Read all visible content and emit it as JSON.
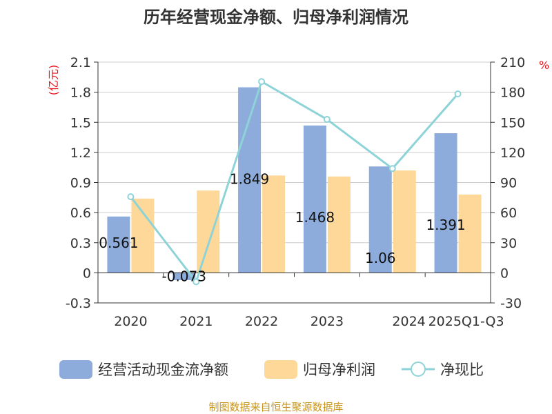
{
  "chart_data": {
    "type": "bar",
    "title": "历年经营现金净额、归母净利润情况",
    "categories": [
      "2020",
      "2021",
      "2022",
      "2023",
      "2024",
      "2025Q1-Q3"
    ],
    "left_axis": {
      "unit_label": "(亿元)",
      "ticks": [
        "2.1",
        "1.8",
        "1.5",
        "1.2",
        "0.9",
        "0.6",
        "0.3",
        "0",
        "-0.3"
      ],
      "ylim": [
        -0.3,
        2.1
      ]
    },
    "right_axis": {
      "unit_label": "%",
      "ticks": [
        "210",
        "180",
        "150",
        "120",
        "90",
        "60",
        "30",
        "0",
        "-30"
      ],
      "ylim": [
        -30,
        210
      ]
    },
    "series": [
      {
        "name": "经营活动现金流净额",
        "kind": "bar",
        "axis": "left",
        "color": "#8dacdb",
        "values": [
          0.561,
          -0.073,
          1.849,
          1.468,
          1.06,
          1.391
        ],
        "labels": [
          "0.561",
          "-0.073",
          "1.849",
          "1.468",
          "1.06",
          "1.391"
        ]
      },
      {
        "name": "归母净利润",
        "kind": "bar",
        "axis": "left",
        "color": "#fed898",
        "values": [
          0.74,
          0.82,
          0.97,
          0.96,
          1.02,
          0.78
        ]
      },
      {
        "name": "净现比",
        "kind": "line",
        "axis": "right",
        "color": "#8dd3d8",
        "values": [
          75.8,
          -8.9,
          190.6,
          152.9,
          103.9,
          178.3
        ]
      }
    ],
    "grid": true,
    "legend_position": "bottom",
    "source": "制图数据来自恒生聚源数据库"
  }
}
